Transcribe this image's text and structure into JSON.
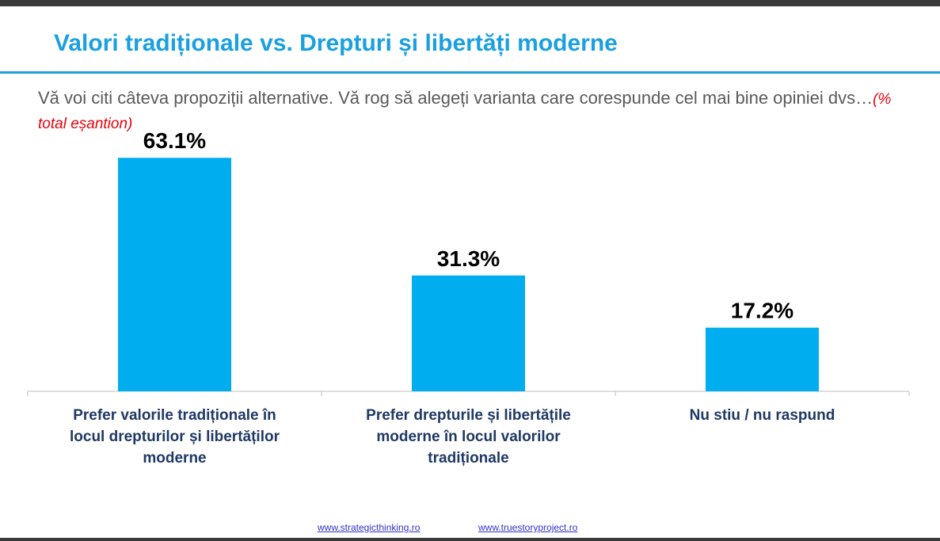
{
  "header": {
    "title": "Valori tradiționale vs. Drepturi și libertăți moderne",
    "question": "Vă voi citi câteva propoziții alternative. Vă rog să alegeți varianta care corespunde cel mai bine opiniei dvs…",
    "note": "(% total eșantion)"
  },
  "chart_data": {
    "type": "bar",
    "categories": [
      [
        "Prefer valorile tradiționale în",
        "locul drepturilor și libertăților",
        "moderne"
      ],
      [
        "Prefer drepturile și libertățile",
        "moderne în locul valorilor",
        "tradiționale"
      ],
      [
        "Nu stiu / nu raspund"
      ]
    ],
    "values": [
      63.1,
      31.3,
      17.2
    ],
    "value_labels": [
      "63.1%",
      "31.3%",
      "17.2%"
    ],
    "ylim": [
      0,
      70
    ],
    "grid": false,
    "legend": "none",
    "bar_color": "#00adef",
    "label_color": "#1f3864"
  },
  "footer": {
    "link1": "www.strategicthinking.ro",
    "link2": "www.truestoryproject.ro"
  }
}
